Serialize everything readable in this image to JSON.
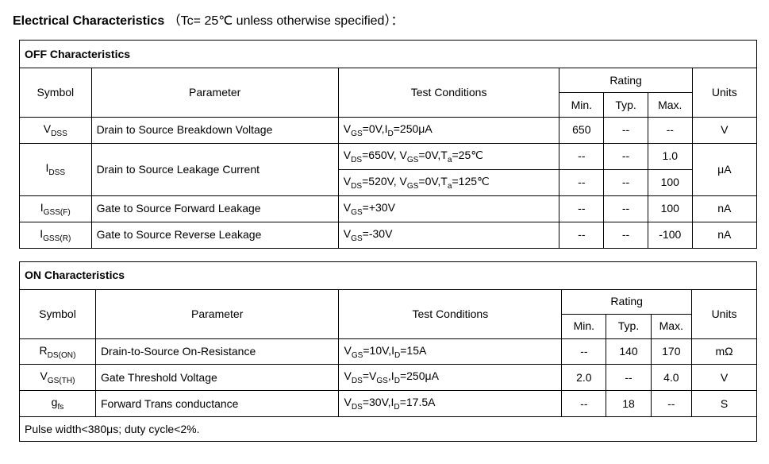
{
  "title": {
    "main": "Electrical Characteristics",
    "suffix": "（Tc= 25℃  unless otherwise specified）："
  },
  "table1": {
    "section": "OFF Characteristics",
    "headers": {
      "symbol": "Symbol",
      "parameter": "Parameter",
      "conditions": "Test Conditions",
      "rating": "Rating",
      "min": "Min.",
      "typ": "Typ.",
      "max": "Max.",
      "units": "Units"
    },
    "rows": {
      "r1": {
        "sym_html": "V<sub>DSS</sub>",
        "param": "Drain to Source Breakdown Voltage",
        "cond_html": "V<sub>GS</sub>=0V,I<sub>D</sub>=250μA",
        "min": "650",
        "typ": "--",
        "max": "--",
        "units": "V"
      },
      "r2": {
        "sym_html": "I<sub>DSS</sub>",
        "param": "Drain to Source Leakage Current",
        "cond1_html": "V<sub>DS</sub>=650V, V<sub>GS</sub>=0V,T<sub>a</sub>=25℃",
        "cond2_html": "V<sub>DS</sub>=520V, V<sub>GS</sub>=0V,T<sub>a</sub>=125℃",
        "min1": "--",
        "typ1": "--",
        "max1": "1.0",
        "min2": "--",
        "typ2": "--",
        "max2": "100",
        "units": "μA"
      },
      "r3": {
        "sym_html": "I<sub>GSS(F)</sub>",
        "param": "Gate to Source Forward Leakage",
        "cond_html": "V<sub>GS</sub>=+30V",
        "min": "--",
        "typ": "--",
        "max": "100",
        "units": "nA"
      },
      "r4": {
        "sym_html": "I<sub>GSS(R)</sub>",
        "param": "Gate to Source Reverse Leakage",
        "cond_html": "V<sub>GS</sub>=-30V",
        "min": "--",
        "typ": "--",
        "max": "-100",
        "units": "nA"
      }
    }
  },
  "table2": {
    "section": "ON Characteristics",
    "headers": {
      "symbol": "Symbol",
      "parameter": "Parameter",
      "conditions": "Test Conditions",
      "rating": "Rating",
      "min": "Min.",
      "typ": "Typ.",
      "max": "Max.",
      "units": "Units"
    },
    "rows": {
      "r1": {
        "sym_html": "R<sub>DS(ON)</sub>",
        "param": "Drain-to-Source On-Resistance",
        "cond_html": "V<sub>GS</sub>=10V,I<sub>D</sub>=15A",
        "min": "--",
        "typ": "140",
        "max": "170",
        "units": "mΩ"
      },
      "r2": {
        "sym_html": "V<sub>GS(TH)</sub>",
        "param": "Gate Threshold Voltage",
        "cond_html": "V<sub>DS</sub>=V<sub>GS</sub>,I<sub>D</sub>=250μA",
        "min": "2.0",
        "typ": "--",
        "max": "4.0",
        "units": "V"
      },
      "r3": {
        "sym_html": "g<sub>fs</sub>",
        "param": "Forward Trans conductance",
        "cond_html": "V<sub>DS</sub>=30V,I<sub>D</sub>=17.5A",
        "min": "--",
        "typ": "18",
        "max": "--",
        "units": "S"
      }
    },
    "footnote": "Pulse width<380μs; duty cycle<2%."
  }
}
